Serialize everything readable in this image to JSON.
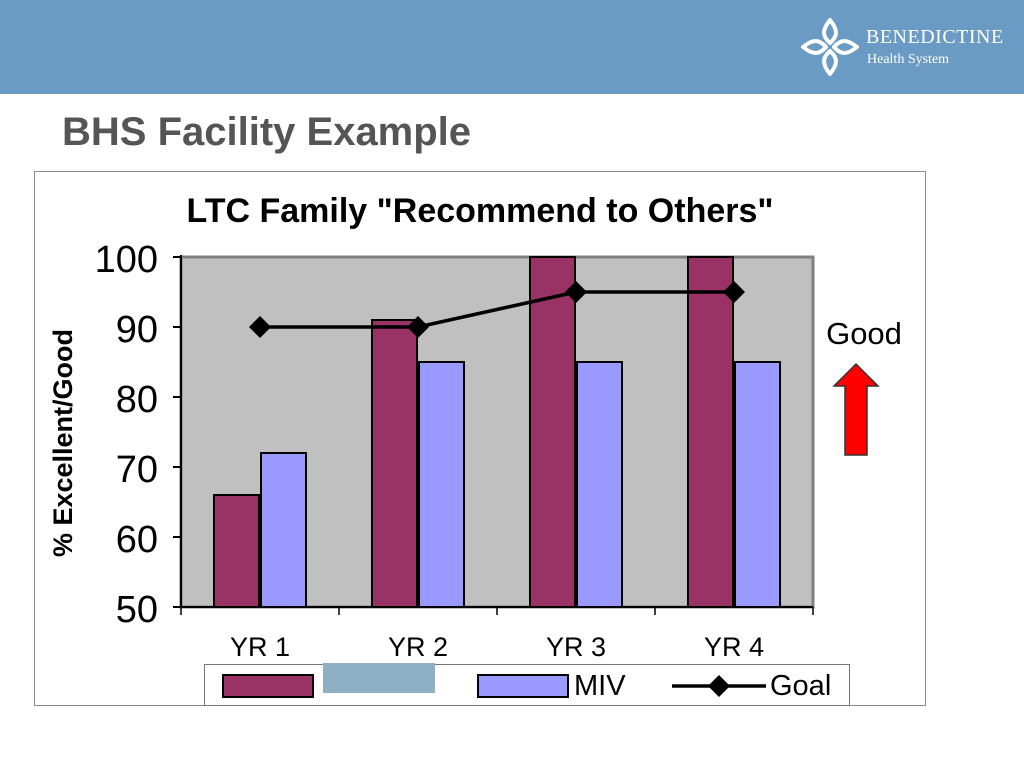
{
  "header": {
    "brand_name": "Benedictine",
    "brand_sub": "Health System",
    "bar_color": "#6a9bc4"
  },
  "slide": {
    "title": "BHS Facility Example"
  },
  "annotation": {
    "label": "Good",
    "arrow_color": "#ff0000"
  },
  "chart_data": {
    "type": "bar",
    "title": "LTC Family \"Recommend to Others\"",
    "ylabel": "% Excellent/Good",
    "xlabel": "",
    "categories": [
      "YR 1",
      "YR 2",
      "YR 3",
      "YR 4"
    ],
    "ylim": [
      50,
      100
    ],
    "yticks": [
      100,
      90,
      80,
      70,
      60,
      50
    ],
    "grid": false,
    "plot_background": "#c0c0c0",
    "legend_position": "bottom",
    "series": [
      {
        "name": "",
        "kind": "bar",
        "color": "#993366",
        "values": [
          66,
          91,
          100,
          100
        ]
      },
      {
        "name": "MIV",
        "kind": "bar",
        "color": "#9999ff",
        "values": [
          72,
          85,
          85,
          85
        ]
      },
      {
        "name": "Goal",
        "kind": "line",
        "marker": "diamond",
        "color": "#000000",
        "values": [
          90,
          90,
          95,
          95
        ]
      }
    ]
  }
}
